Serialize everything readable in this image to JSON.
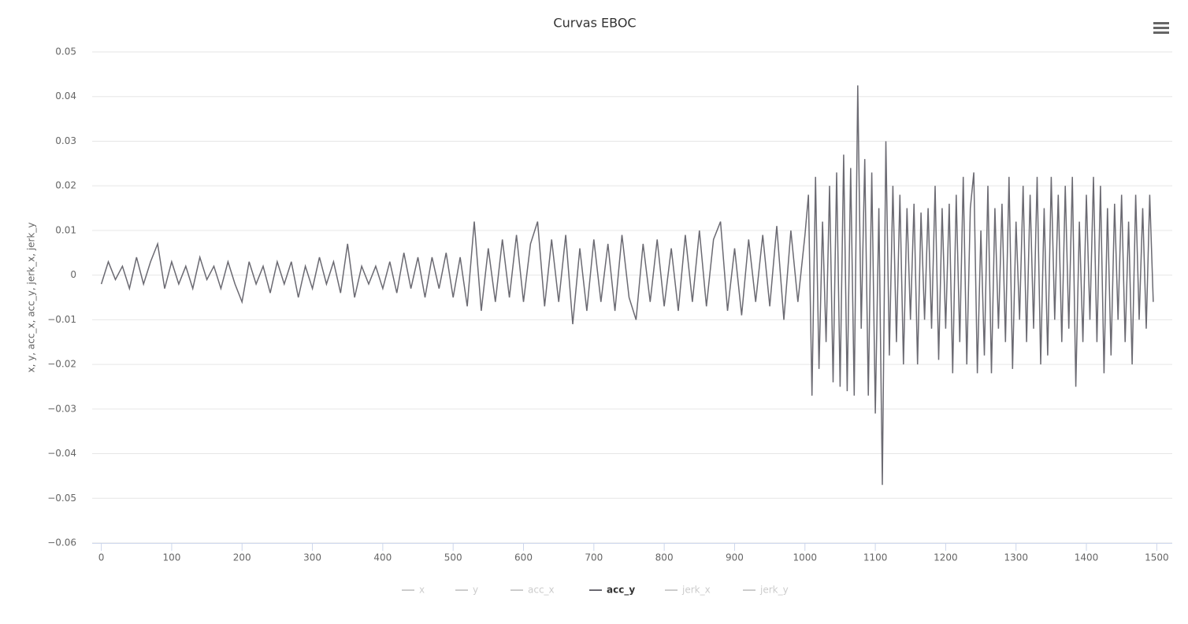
{
  "chart_data": {
    "type": "line",
    "title": "Curvas EBOC",
    "y_label": "x, y, acc_x, acc_y, jerk_x, jerk_y",
    "x": [
      0,
      10,
      20,
      30,
      40,
      50,
      60,
      70,
      80,
      90,
      100,
      110,
      120,
      130,
      140,
      150,
      160,
      170,
      180,
      190,
      200,
      210,
      220,
      230,
      240,
      250,
      260,
      270,
      280,
      290,
      300,
      310,
      320,
      330,
      340,
      350,
      360,
      370,
      380,
      390,
      400,
      410,
      420,
      430,
      440,
      450,
      460,
      470,
      480,
      490,
      500,
      510,
      520,
      530,
      540,
      550,
      560,
      570,
      580,
      590,
      600,
      610,
      620,
      630,
      640,
      650,
      660,
      670,
      680,
      690,
      700,
      710,
      720,
      730,
      740,
      750,
      760,
      770,
      780,
      790,
      800,
      810,
      820,
      830,
      840,
      850,
      860,
      870,
      880,
      890,
      900,
      910,
      920,
      930,
      940,
      950,
      960,
      970,
      980,
      990,
      1000,
      1005,
      1010,
      1015,
      1020,
      1025,
      1030,
      1035,
      1040,
      1045,
      1050,
      1055,
      1060,
      1065,
      1070,
      1075,
      1080,
      1085,
      1090,
      1095,
      1100,
      1105,
      1110,
      1115,
      1120,
      1125,
      1130,
      1135,
      1140,
      1145,
      1150,
      1155,
      1160,
      1165,
      1170,
      1175,
      1180,
      1185,
      1190,
      1195,
      1200,
      1205,
      1210,
      1215,
      1220,
      1225,
      1230,
      1235,
      1240,
      1245,
      1250,
      1255,
      1260,
      1265,
      1270,
      1275,
      1280,
      1285,
      1290,
      1295,
      1300,
      1305,
      1310,
      1315,
      1320,
      1325,
      1330,
      1335,
      1340,
      1345,
      1350,
      1355,
      1360,
      1365,
      1370,
      1375,
      1380,
      1385,
      1390,
      1395,
      1400,
      1405,
      1410,
      1415,
      1420,
      1425,
      1430,
      1435,
      1440,
      1445,
      1450,
      1455,
      1460,
      1465,
      1470,
      1475,
      1480,
      1485,
      1490,
      1495
    ],
    "series": [
      {
        "name": "x",
        "visible": false
      },
      {
        "name": "y",
        "visible": false
      },
      {
        "name": "acc_x",
        "visible": false
      },
      {
        "name": "acc_y",
        "visible": true,
        "color": "#6b6a72",
        "values": [
          -0.002,
          0.003,
          -0.001,
          0.002,
          -0.003,
          0.004,
          -0.002,
          0.003,
          0.007,
          -0.003,
          0.003,
          -0.002,
          0.002,
          -0.003,
          0.004,
          -0.001,
          0.002,
          -0.003,
          0.003,
          -0.002,
          -0.006,
          0.003,
          -0.002,
          0.002,
          -0.004,
          0.003,
          -0.002,
          0.003,
          -0.005,
          0.002,
          -0.003,
          0.004,
          -0.002,
          0.003,
          -0.004,
          0.007,
          -0.005,
          0.002,
          -0.002,
          0.002,
          -0.003,
          0.003,
          -0.004,
          0.005,
          -0.003,
          0.004,
          -0.005,
          0.004,
          -0.003,
          0.005,
          -0.005,
          0.004,
          -0.007,
          0.012,
          -0.008,
          0.006,
          -0.006,
          0.008,
          -0.005,
          0.009,
          -0.006,
          0.007,
          0.012,
          -0.007,
          0.008,
          -0.006,
          0.009,
          -0.011,
          0.006,
          -0.008,
          0.008,
          -0.006,
          0.007,
          -0.008,
          0.009,
          -0.005,
          -0.01,
          0.007,
          -0.006,
          0.008,
          -0.007,
          0.006,
          -0.008,
          0.009,
          -0.006,
          0.01,
          -0.007,
          0.008,
          0.012,
          -0.008,
          0.006,
          -0.009,
          0.008,
          -0.006,
          0.009,
          -0.007,
          0.011,
          -0.01,
          0.01,
          -0.006,
          0.009,
          0.018,
          -0.027,
          0.022,
          -0.021,
          0.012,
          -0.015,
          0.02,
          -0.024,
          0.023,
          -0.025,
          0.027,
          -0.026,
          0.024,
          -0.027,
          0.0425,
          -0.012,
          0.026,
          -0.027,
          0.023,
          -0.031,
          0.015,
          -0.047,
          0.03,
          -0.018,
          0.02,
          -0.015,
          0.018,
          -0.02,
          0.015,
          -0.01,
          0.016,
          -0.02,
          0.014,
          -0.01,
          0.015,
          -0.012,
          0.02,
          -0.019,
          0.015,
          -0.012,
          0.016,
          -0.022,
          0.018,
          -0.015,
          0.022,
          -0.02,
          0.015,
          0.023,
          -0.022,
          0.01,
          -0.018,
          0.02,
          -0.022,
          0.015,
          -0.012,
          0.016,
          -0.015,
          0.022,
          -0.021,
          0.012,
          -0.01,
          0.02,
          -0.015,
          0.018,
          -0.012,
          0.022,
          -0.02,
          0.015,
          -0.018,
          0.022,
          -0.01,
          0.018,
          -0.015,
          0.02,
          -0.012,
          0.022,
          -0.025,
          0.012,
          -0.015,
          0.018,
          -0.01,
          0.022,
          -0.015,
          0.02,
          -0.022,
          0.015,
          -0.018,
          0.016,
          -0.01,
          0.018,
          -0.015,
          0.012,
          -0.02,
          0.018,
          -0.01,
          0.015,
          -0.012,
          0.018,
          -0.006
        ]
      },
      {
        "name": "jerk_x",
        "visible": false
      },
      {
        "name": "jerk_y",
        "visible": false
      }
    ],
    "xlim": [
      -13,
      1522
    ],
    "xticks": [
      0,
      100,
      200,
      300,
      400,
      500,
      600,
      700,
      800,
      900,
      1000,
      1100,
      1200,
      1300,
      1400,
      1500
    ],
    "ylim": [
      -0.06,
      0.05
    ],
    "yticks": [
      {
        "value": -0.06,
        "label": "−0.06"
      },
      {
        "value": -0.05,
        "label": "−0.05"
      },
      {
        "value": -0.04,
        "label": "−0.04"
      },
      {
        "value": -0.03,
        "label": "−0.03"
      },
      {
        "value": -0.02,
        "label": "−0.02"
      },
      {
        "value": -0.01,
        "label": "−0.01"
      },
      0,
      0.01,
      0.02,
      0.03,
      0.04,
      0.05
    ],
    "grid": true
  }
}
